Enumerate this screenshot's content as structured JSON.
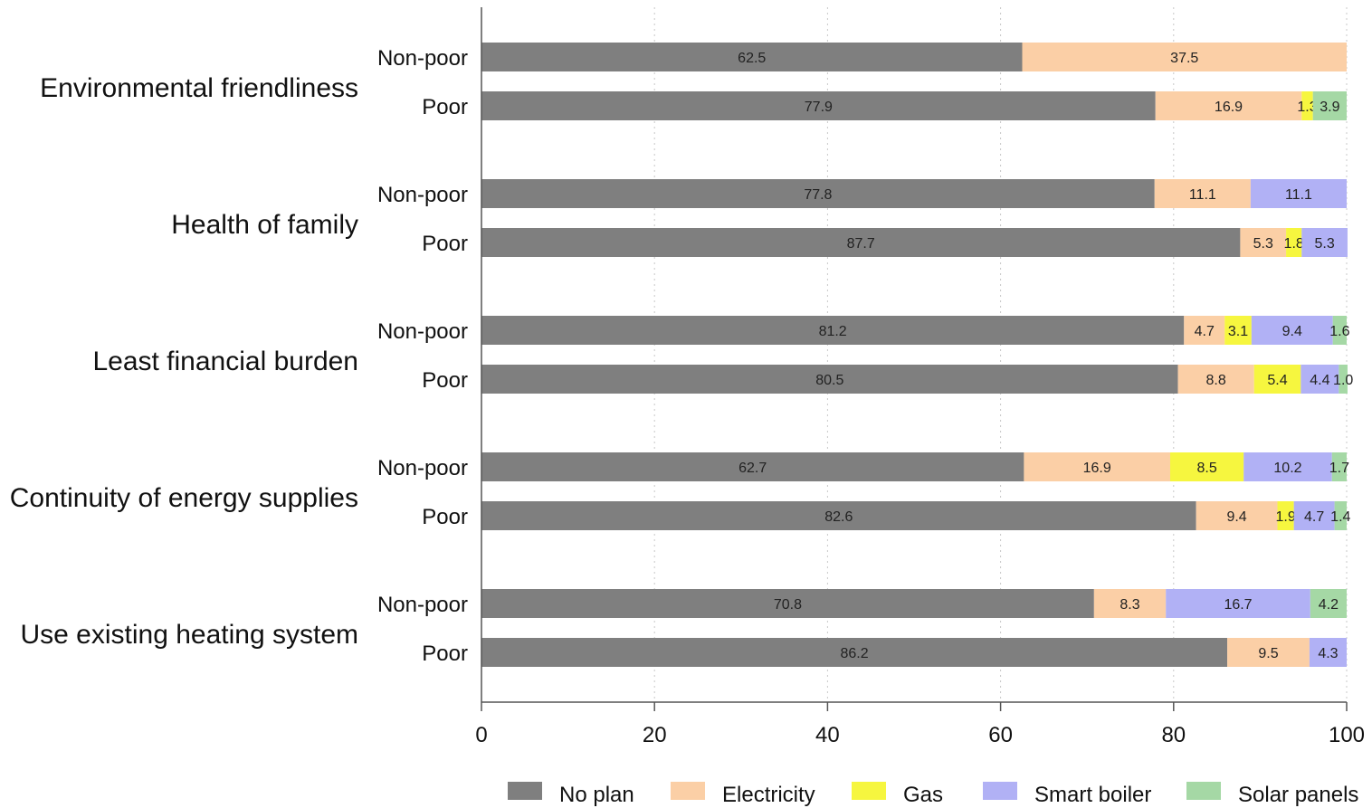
{
  "chart_data": {
    "type": "bar",
    "orientation": "horizontal",
    "stacked": true,
    "xlim": [
      0,
      100
    ],
    "x_ticks": [
      "0",
      "20",
      "40",
      "60",
      "80",
      "100"
    ],
    "x_tick_values": [
      0,
      20,
      40,
      60,
      80,
      100
    ],
    "grid": "vertical dotted",
    "legend_position": "bottom",
    "series": [
      {
        "name": "No plan",
        "color": "#7f7f7f"
      },
      {
        "name": "Electricity",
        "color": "#fbcfa6"
      },
      {
        "name": "Gas",
        "color": "#f6f63f"
      },
      {
        "name": "Smart boiler",
        "color": "#b1b1f5"
      },
      {
        "name": "Solar panels",
        "color": "#a5d8a5"
      }
    ],
    "groups": [
      {
        "label": "Environmental friendliness",
        "bars": [
          {
            "label": "Non-poor",
            "values": [
              62.5,
              37.5,
              0,
              0,
              0
            ],
            "value_labels": [
              "62.5",
              "37.5",
              "",
              "",
              ""
            ]
          },
          {
            "label": "Poor",
            "values": [
              77.9,
              16.9,
              1.3,
              0,
              3.9
            ],
            "value_labels": [
              "77.9",
              "16.9",
              "1.3",
              "",
              "3.9"
            ]
          }
        ]
      },
      {
        "label": "Health of family",
        "bars": [
          {
            "label": "Non-poor",
            "values": [
              77.8,
              11.1,
              0,
              11.1,
              0
            ],
            "value_labels": [
              "77.8",
              "11.1",
              "",
              "11.1",
              ""
            ]
          },
          {
            "label": "Poor",
            "values": [
              87.7,
              5.3,
              1.8,
              5.3,
              0
            ],
            "value_labels": [
              "87.7",
              "5.3",
              "1.8",
              "5.3",
              ""
            ]
          }
        ]
      },
      {
        "label": "Least financial burden",
        "bars": [
          {
            "label": "Non-poor",
            "values": [
              81.2,
              4.7,
              3.1,
              9.4,
              1.6
            ],
            "value_labels": [
              "81.2",
              "4.7",
              "3.1",
              "9.4",
              "1.6"
            ]
          },
          {
            "label": "Poor",
            "values": [
              80.5,
              8.8,
              5.4,
              4.4,
              1.0
            ],
            "value_labels": [
              "80.5",
              "8.8",
              "5.4",
              "4.4",
              "1.0"
            ]
          }
        ]
      },
      {
        "label": "Continuity of energy supplies",
        "bars": [
          {
            "label": "Non-poor",
            "values": [
              62.7,
              16.9,
              8.5,
              10.2,
              1.7
            ],
            "value_labels": [
              "62.7",
              "16.9",
              "8.5",
              "10.2",
              "1.7"
            ]
          },
          {
            "label": "Poor",
            "values": [
              82.6,
              9.4,
              1.9,
              4.7,
              1.4
            ],
            "value_labels": [
              "82.6",
              "9.4",
              "1.9",
              "4.7",
              "1.4"
            ]
          }
        ]
      },
      {
        "label": "Use existing heating system",
        "bars": [
          {
            "label": "Non-poor",
            "values": [
              70.8,
              8.3,
              0,
              16.7,
              4.2
            ],
            "value_labels": [
              "70.8",
              "8.3",
              "",
              "16.7",
              "4.2"
            ]
          },
          {
            "label": "Poor",
            "values": [
              86.2,
              9.5,
              0,
              4.3,
              0
            ],
            "value_labels": [
              "86.2",
              "9.5",
              "",
              "4.3",
              ""
            ]
          }
        ]
      }
    ]
  }
}
